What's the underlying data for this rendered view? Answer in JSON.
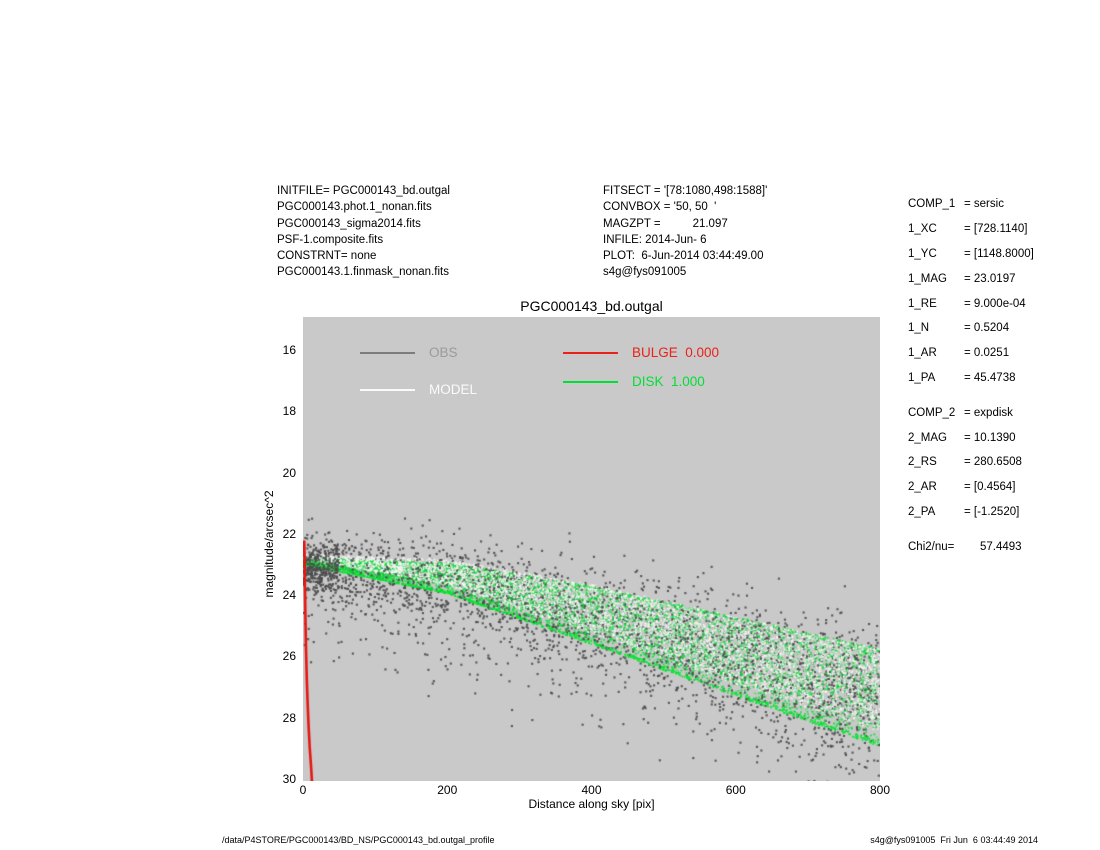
{
  "header_left": {
    "lines": [
      "INITFILE= PGC000143_bd.outgal",
      "PGC000143.phot.1_nonan.fits",
      "PGC000143_sigma2014.fits",
      "PSF-1.composite.fits",
      "CONSTRNT= none",
      "PGC000143.1.finmask_nonan.fits"
    ]
  },
  "header_mid": {
    "lines": [
      "FITSECT = '[78:1080,498:1588]'",
      "CONVBOX = '50, 50  '",
      "MAGZPT =          21.097",
      "INFILE: 2014-Jun- 6",
      "PLOT:  6-Jun-2014 03:44:49.00",
      "s4g@fys091005"
    ]
  },
  "params": {
    "items": [
      {
        "label": "COMP_1",
        "value": "= sersic",
        "gap": false
      },
      {
        "label": "1_XC",
        "value": "= [728.1140]",
        "gap": false
      },
      {
        "label": "1_YC",
        "value": "= [1148.8000]",
        "gap": false
      },
      {
        "label": "1_MAG",
        "value": "= 23.0197",
        "gap": false
      },
      {
        "label": "1_RE",
        "value": "= 9.000e-04",
        "gap": false
      },
      {
        "label": "1_N",
        "value": "= 0.5204",
        "gap": false
      },
      {
        "label": "1_AR",
        "value": "= 0.0251",
        "gap": false
      },
      {
        "label": "1_PA",
        "value": "= 45.4738",
        "gap": false
      },
      {
        "label": "COMP_2",
        "value": "= expdisk",
        "gap": true
      },
      {
        "label": "2_MAG",
        "value": "= 10.1390",
        "gap": false
      },
      {
        "label": "2_RS",
        "value": "= 280.6508",
        "gap": false
      },
      {
        "label": "2_AR",
        "value": "= [0.4564]",
        "gap": false
      },
      {
        "label": "2_PA",
        "value": "= [-1.2520]",
        "gap": false
      },
      {
        "label": "Chi2/nu=",
        "value": "     57.4493",
        "gap": true
      }
    ]
  },
  "footer": {
    "left": "/data/P4STORE/PGC000143/BD_NS/PGC000143_bd.outgal_profile",
    "right": "s4g@fys091005  Fri Jun  6 03:44:49 2014"
  },
  "chart_data": {
    "type": "scatter",
    "title": "PGC000143_bd.outgal",
    "xlabel": "Distance along sky [pix]",
    "ylabel": "magnitude/arcsec^2",
    "xlim": [
      0,
      800
    ],
    "ylim": [
      30,
      16
    ],
    "axis_inverted": true,
    "x_ticks": [
      0,
      200,
      400,
      600,
      800
    ],
    "y_ticks": [
      16,
      18,
      20,
      22,
      24,
      26,
      28,
      30
    ],
    "plot_bg": "#c9c9c9",
    "grid": false,
    "legend_position": "top-inside",
    "legend": [
      {
        "label": "OBS",
        "text_color": "#9b9b9b",
        "line_color": "#7d7d7d"
      },
      {
        "label": "MODEL",
        "text_color": "#fafafa",
        "line_color": "#fafafa"
      },
      {
        "label": "BULGE  0.000",
        "text_color": "#e8221a",
        "line_color": "#e8221a"
      },
      {
        "label": "DISK  1.000",
        "text_color": "#00df33",
        "line_color": "#00df33"
      }
    ],
    "series": [
      {
        "name": "OBS",
        "kind": "cloud",
        "color": "#4c4c4c",
        "point_size": 2.1,
        "n": 3000,
        "trend": [
          [
            0,
            23.0
          ],
          [
            200,
            23.5
          ],
          [
            400,
            24.7
          ],
          [
            600,
            26.0
          ],
          [
            800,
            27.3
          ]
        ],
        "sigma": [
          0.5,
          1.2
        ],
        "outlier_frac": 0.16,
        "outlier_max_extra_mag": 2.8,
        "left_cluster": {
          "n": 260,
          "x_max": 50,
          "mag": 23.1,
          "sigma": 0.38
        }
      },
      {
        "name": "DISK",
        "kind": "band",
        "colors": [
          "#00d830",
          "#4ce463"
        ],
        "point_size": 1.6,
        "n": 5200,
        "trend": [
          [
            0,
            22.9
          ],
          [
            200,
            23.45
          ],
          [
            400,
            24.65
          ],
          [
            600,
            26.0
          ],
          [
            800,
            27.35
          ]
        ],
        "halfwidth": [
          [
            0,
            0.1
          ],
          [
            200,
            0.5
          ],
          [
            400,
            0.95
          ],
          [
            600,
            1.3
          ],
          [
            800,
            1.6
          ]
        ],
        "x_bias": 1.0,
        "edge": {
          "n": 900,
          "color": "#00e52e"
        }
      },
      {
        "name": "MODEL",
        "kind": "band",
        "colors": [
          "#f7f7f7",
          "#e9efe9"
        ],
        "point_size": 1.6,
        "n": 4200,
        "trend": [
          [
            0,
            22.75
          ],
          [
            200,
            23.25
          ],
          [
            400,
            24.45
          ],
          [
            600,
            25.8
          ],
          [
            800,
            27.1
          ]
        ],
        "halfwidth": [
          [
            0,
            0.07
          ],
          [
            200,
            0.42
          ],
          [
            400,
            0.8
          ],
          [
            600,
            1.1
          ],
          [
            800,
            1.35
          ]
        ],
        "x_bias": 0.8
      },
      {
        "name": "BULGE",
        "kind": "line",
        "color": "#e81510",
        "line_width": 2.6,
        "points": [
          [
            1.8,
            22.25
          ],
          [
            2.6,
            23.6
          ],
          [
            3.4,
            24.8
          ],
          [
            4.2,
            25.8
          ],
          [
            5.2,
            26.7
          ],
          [
            6.4,
            27.5
          ],
          [
            7.8,
            28.3
          ],
          [
            9.4,
            29.0
          ],
          [
            11.2,
            29.6
          ],
          [
            13.2,
            30.4
          ]
        ]
      }
    ]
  }
}
